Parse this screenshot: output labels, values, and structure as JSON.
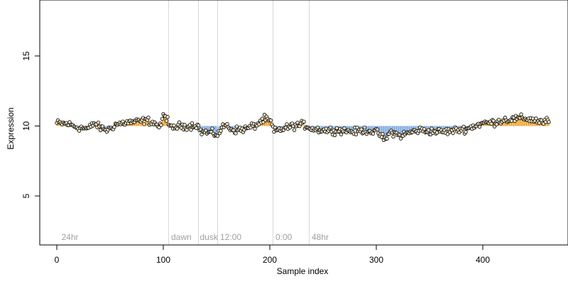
{
  "chart_data": {
    "type": "scatter",
    "xlabel": "Sample index",
    "ylabel": "Expression",
    "xlim": [
      -16,
      480
    ],
    "ylim": [
      1.5,
      19
    ],
    "x_ticks": [
      0,
      100,
      200,
      300,
      400
    ],
    "y_ticks": [
      5,
      10,
      15
    ],
    "baseline": 10,
    "grid": false,
    "colors": {
      "above_baseline": "#f0a020",
      "below_baseline": "#7aa6e0",
      "point_stroke": "#000000",
      "point_fill": "#f4e6c8",
      "divider": "#d8d8d8",
      "label": "#a0a0a0"
    },
    "region_dividers": [
      105,
      133,
      151,
      203,
      237
    ],
    "region_labels": [
      {
        "label": "24hr",
        "x": 3
      },
      {
        "label": "dawn",
        "x": 106
      },
      {
        "label": "dusk",
        "x": 133
      },
      {
        "label": "12:00",
        "x": 152
      },
      {
        "label": "0:00",
        "x": 204
      },
      {
        "label": "48hr",
        "x": 238
      }
    ],
    "series": [
      {
        "name": "",
        "knots": [
          [
            0,
            10.2
          ],
          [
            10,
            10.15
          ],
          [
            20,
            9.9
          ],
          [
            30,
            9.8
          ],
          [
            35,
            10.2
          ],
          [
            40,
            9.9
          ],
          [
            48,
            9.7
          ],
          [
            55,
            10.1
          ],
          [
            65,
            10.25
          ],
          [
            75,
            10.3
          ],
          [
            85,
            10.4
          ],
          [
            92,
            10.2
          ],
          [
            97,
            9.9
          ],
          [
            100,
            10.7
          ],
          [
            104,
            10.6
          ],
          [
            106,
            9.8
          ],
          [
            115,
            10.0
          ],
          [
            125,
            10.0
          ],
          [
            132,
            10.1
          ],
          [
            135,
            9.6
          ],
          [
            145,
            9.5
          ],
          [
            151,
            9.4
          ],
          [
            158,
            10.1
          ],
          [
            166,
            9.7
          ],
          [
            178,
            9.8
          ],
          [
            188,
            10.1
          ],
          [
            195,
            10.5
          ],
          [
            201,
            10.3
          ],
          [
            204,
            9.6
          ],
          [
            212,
            9.8
          ],
          [
            222,
            10.0
          ],
          [
            232,
            10.1
          ],
          [
            240,
            9.8
          ],
          [
            252,
            9.7
          ],
          [
            265,
            9.7
          ],
          [
            280,
            9.6
          ],
          [
            292,
            9.7
          ],
          [
            302,
            9.5
          ],
          [
            308,
            9.0
          ],
          [
            314,
            9.6
          ],
          [
            322,
            9.3
          ],
          [
            330,
            9.5
          ],
          [
            340,
            9.7
          ],
          [
            355,
            9.6
          ],
          [
            365,
            9.6
          ],
          [
            375,
            9.7
          ],
          [
            385,
            9.8
          ],
          [
            392,
            10.0
          ],
          [
            400,
            10.2
          ],
          [
            410,
            10.25
          ],
          [
            420,
            10.45
          ],
          [
            430,
            10.5
          ],
          [
            440,
            10.55
          ],
          [
            450,
            10.4
          ],
          [
            458,
            10.25
          ],
          [
            462,
            10.45
          ]
        ],
        "jitter": 0.18,
        "count": 463
      }
    ]
  }
}
